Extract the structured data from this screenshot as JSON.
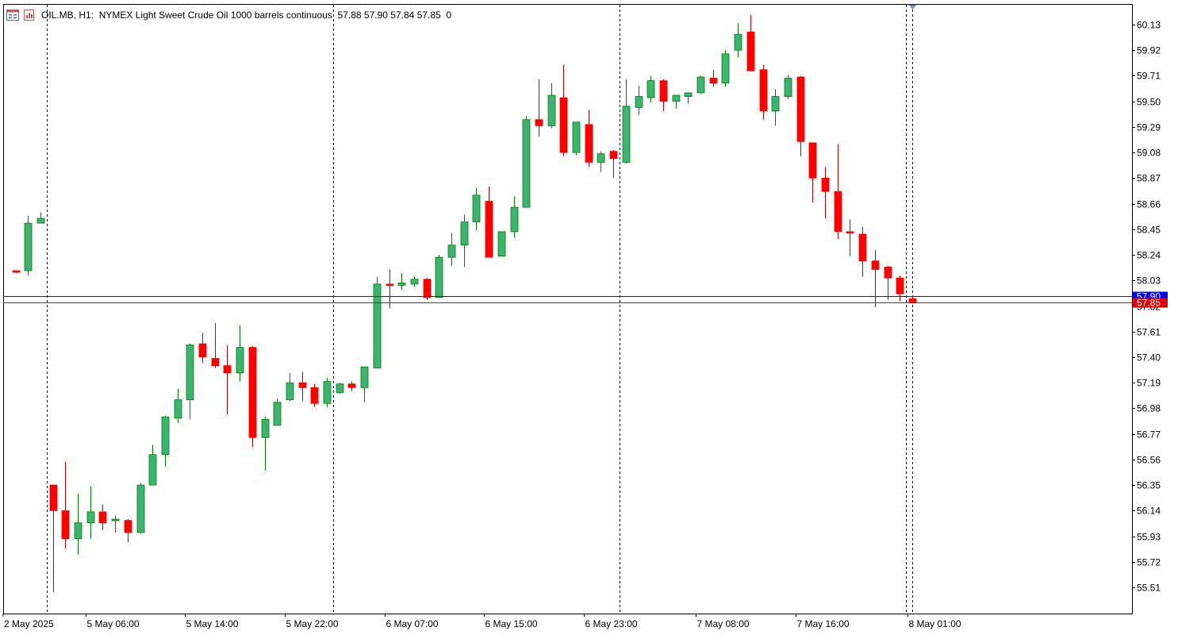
{
  "header": {
    "symbol": "OIL.MB",
    "timeframe": "H1",
    "description": "NYMEX Light Sweet Crude Oil 1000 barrels continuous",
    "ohlc": "57.88 57.90 57.84 57.85",
    "extra": "0",
    "icon_left": "window-list-icon",
    "icon_right": "chart-file-icon"
  },
  "chart_data": {
    "type": "candlestick",
    "interval": "H1",
    "y_range": [
      55.38,
      60.27
    ],
    "y_ticks": [
      "60.13",
      "59.92",
      "59.71",
      "59.50",
      "59.29",
      "59.08",
      "58.87",
      "58.66",
      "58.45",
      "58.24",
      "58.03",
      "57.82",
      "57.61",
      "57.40",
      "57.19",
      "56.98",
      "56.77",
      "56.56",
      "56.35",
      "56.14",
      "55.93",
      "55.72",
      "55.51"
    ],
    "x_labels": [
      "2 May 2025",
      "5 May 06:00",
      "5 May 14:00",
      "5 May 22:00",
      "6 May 07:00",
      "6 May 15:00",
      "6 May 23:00",
      "7 May 08:00",
      "7 May 16:00",
      "8 May 01:00"
    ],
    "session_separators": [
      3,
      26,
      49,
      72
    ],
    "candles": [
      {
        "o": 58.11,
        "h": 58.11,
        "l": 58.09,
        "c": 58.1
      },
      {
        "o": 58.11,
        "h": 58.56,
        "l": 58.07,
        "c": 58.5
      },
      {
        "o": 58.5,
        "h": 58.59,
        "l": 58.5,
        "c": 58.54
      },
      {
        "o": 56.35,
        "h": 56.35,
        "l": 55.47,
        "c": 56.14
      },
      {
        "o": 56.14,
        "h": 56.54,
        "l": 55.83,
        "c": 55.91
      },
      {
        "o": 55.91,
        "h": 56.28,
        "l": 55.78,
        "c": 56.04
      },
      {
        "o": 56.04,
        "h": 56.34,
        "l": 55.91,
        "c": 56.13
      },
      {
        "o": 56.13,
        "h": 56.19,
        "l": 55.98,
        "c": 56.04
      },
      {
        "o": 56.06,
        "h": 56.1,
        "l": 55.96,
        "c": 56.07
      },
      {
        "o": 56.06,
        "h": 56.07,
        "l": 55.88,
        "c": 55.96
      },
      {
        "o": 55.96,
        "h": 56.37,
        "l": 55.95,
        "c": 56.35
      },
      {
        "o": 56.35,
        "h": 56.68,
        "l": 56.35,
        "c": 56.6
      },
      {
        "o": 56.6,
        "h": 56.92,
        "l": 56.5,
        "c": 56.91
      },
      {
        "o": 56.9,
        "h": 57.14,
        "l": 56.86,
        "c": 57.05
      },
      {
        "o": 57.05,
        "h": 57.51,
        "l": 56.89,
        "c": 57.5
      },
      {
        "o": 57.51,
        "h": 57.6,
        "l": 57.35,
        "c": 57.4
      },
      {
        "o": 57.39,
        "h": 57.68,
        "l": 57.31,
        "c": 57.33
      },
      {
        "o": 57.33,
        "h": 57.5,
        "l": 56.93,
        "c": 57.27
      },
      {
        "o": 57.27,
        "h": 57.66,
        "l": 57.2,
        "c": 57.48
      },
      {
        "o": 57.48,
        "h": 57.49,
        "l": 56.66,
        "c": 56.74
      },
      {
        "o": 56.74,
        "h": 56.91,
        "l": 56.47,
        "c": 56.89
      },
      {
        "o": 56.84,
        "h": 57.06,
        "l": 56.84,
        "c": 57.03
      },
      {
        "o": 57.05,
        "h": 57.27,
        "l": 57.04,
        "c": 57.19
      },
      {
        "o": 57.19,
        "h": 57.28,
        "l": 57.04,
        "c": 57.15
      },
      {
        "o": 57.15,
        "h": 57.18,
        "l": 56.99,
        "c": 57.02
      },
      {
        "o": 57.02,
        "h": 57.23,
        "l": 56.99,
        "c": 57.2
      },
      {
        "o": 57.11,
        "h": 57.19,
        "l": 57.1,
        "c": 57.18
      },
      {
        "o": 57.18,
        "h": 57.2,
        "l": 57.12,
        "c": 57.15
      },
      {
        "o": 57.15,
        "h": 57.31,
        "l": 57.03,
        "c": 57.32
      },
      {
        "o": 57.31,
        "h": 58.06,
        "l": 57.31,
        "c": 58.0
      },
      {
        "o": 58.0,
        "h": 58.12,
        "l": 57.8,
        "c": 57.99
      },
      {
        "o": 57.99,
        "h": 58.09,
        "l": 57.95,
        "c": 58.01
      },
      {
        "o": 58.0,
        "h": 58.06,
        "l": 57.98,
        "c": 58.04
      },
      {
        "o": 58.04,
        "h": 58.05,
        "l": 57.87,
        "c": 57.89
      },
      {
        "o": 57.89,
        "h": 58.24,
        "l": 57.89,
        "c": 58.22
      },
      {
        "o": 58.22,
        "h": 58.42,
        "l": 58.15,
        "c": 58.32
      },
      {
        "o": 58.32,
        "h": 58.57,
        "l": 58.14,
        "c": 58.51
      },
      {
        "o": 58.51,
        "h": 58.79,
        "l": 58.44,
        "c": 58.73
      },
      {
        "o": 58.68,
        "h": 58.8,
        "l": 58.23,
        "c": 58.22
      },
      {
        "o": 58.23,
        "h": 58.43,
        "l": 58.23,
        "c": 58.43
      },
      {
        "o": 58.43,
        "h": 58.72,
        "l": 58.38,
        "c": 58.63
      },
      {
        "o": 58.63,
        "h": 59.38,
        "l": 58.63,
        "c": 59.35
      },
      {
        "o": 59.35,
        "h": 59.68,
        "l": 59.21,
        "c": 59.3
      },
      {
        "o": 59.3,
        "h": 59.65,
        "l": 59.28,
        "c": 59.55
      },
      {
        "o": 59.53,
        "h": 59.8,
        "l": 59.05,
        "c": 59.08
      },
      {
        "o": 59.08,
        "h": 59.33,
        "l": 59.06,
        "c": 59.33
      },
      {
        "o": 59.31,
        "h": 59.43,
        "l": 58.96,
        "c": 59.0
      },
      {
        "o": 59.0,
        "h": 59.09,
        "l": 58.92,
        "c": 59.07
      },
      {
        "o": 59.09,
        "h": 59.1,
        "l": 58.87,
        "c": 59.03
      },
      {
        "o": 59.0,
        "h": 59.68,
        "l": 58.99,
        "c": 59.46
      },
      {
        "o": 59.45,
        "h": 59.63,
        "l": 59.39,
        "c": 59.54
      },
      {
        "o": 59.53,
        "h": 59.71,
        "l": 59.49,
        "c": 59.67
      },
      {
        "o": 59.67,
        "h": 59.68,
        "l": 59.42,
        "c": 59.5
      },
      {
        "o": 59.5,
        "h": 59.55,
        "l": 59.44,
        "c": 59.55
      },
      {
        "o": 59.54,
        "h": 59.57,
        "l": 59.48,
        "c": 59.57
      },
      {
        "o": 59.57,
        "h": 59.71,
        "l": 59.56,
        "c": 59.7
      },
      {
        "o": 59.69,
        "h": 59.76,
        "l": 59.62,
        "c": 59.65
      },
      {
        "o": 59.65,
        "h": 59.92,
        "l": 59.62,
        "c": 59.89
      },
      {
        "o": 59.92,
        "h": 60.14,
        "l": 59.86,
        "c": 60.05
      },
      {
        "o": 60.07,
        "h": 60.21,
        "l": 59.75,
        "c": 59.75
      },
      {
        "o": 59.76,
        "h": 59.8,
        "l": 59.35,
        "c": 59.42
      },
      {
        "o": 59.42,
        "h": 59.6,
        "l": 59.3,
        "c": 59.54
      },
      {
        "o": 59.54,
        "h": 59.72,
        "l": 59.52,
        "c": 59.69
      },
      {
        "o": 59.7,
        "h": 59.71,
        "l": 59.05,
        "c": 59.17
      },
      {
        "o": 59.16,
        "h": 59.16,
        "l": 58.67,
        "c": 58.87
      },
      {
        "o": 58.87,
        "h": 58.96,
        "l": 58.54,
        "c": 58.76
      },
      {
        "o": 58.76,
        "h": 59.15,
        "l": 58.37,
        "c": 58.43
      },
      {
        "o": 58.43,
        "h": 58.53,
        "l": 58.23,
        "c": 58.42
      },
      {
        "o": 58.41,
        "h": 58.47,
        "l": 58.06,
        "c": 58.19
      },
      {
        "o": 58.19,
        "h": 58.28,
        "l": 57.81,
        "c": 58.12
      },
      {
        "o": 58.14,
        "h": 58.15,
        "l": 57.87,
        "c": 58.05
      },
      {
        "o": 58.05,
        "h": 58.07,
        "l": 57.86,
        "c": 57.92
      },
      {
        "o": 57.88,
        "h": 57.9,
        "l": 57.84,
        "c": 57.85
      }
    ],
    "bid_price": "57.85",
    "ask_price": "57.90",
    "colors": {
      "bull_body": "#3cb371",
      "bear_body": "#ff0000",
      "bull_wick": "#008000",
      "bear_wick": "#c00000",
      "doji": "#00d000",
      "bid_line": "#e00000",
      "ask_line": "#1c1c8a",
      "ask_tag": "#0000ff",
      "grid_sep": "#000000",
      "axis": "#000000"
    }
  }
}
